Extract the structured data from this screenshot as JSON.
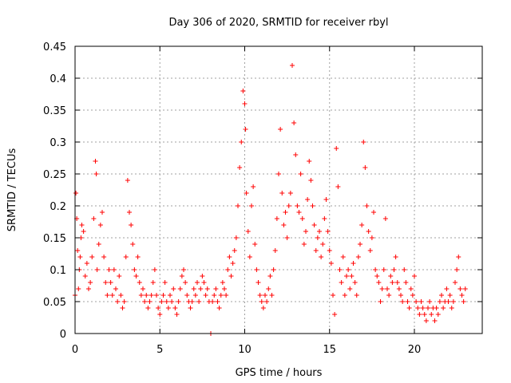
{
  "chart_data": {
    "type": "scatter",
    "title": "Day 306 of 2020, SRMTID for receiver rbyl",
    "xlabel": "GPS time / hours",
    "ylabel": "SRMTID / TECUs",
    "xlim": [
      0,
      24
    ],
    "ylim": [
      0,
      0.45
    ],
    "xticks": [
      0,
      5,
      10,
      15,
      20
    ],
    "xtick_labels": [
      "0",
      "5",
      "10",
      "15",
      "20"
    ],
    "yticks": [
      0,
      0.05,
      0.1,
      0.15,
      0.2,
      0.25,
      0.3,
      0.35,
      0.4,
      0.45
    ],
    "ytick_labels": [
      "0",
      "0.05",
      "0.1",
      "0.15",
      "0.2",
      "0.25",
      "0.3",
      "0.35",
      "0.4",
      "0.45"
    ],
    "grid": true,
    "marker": "+",
    "color": "#ff0000",
    "series": [
      {
        "name": "SRMTID",
        "x": [
          0.0,
          0.05,
          0.1,
          0.15,
          0.2,
          0.25,
          0.3,
          0.35,
          0.4,
          0.5,
          0.6,
          0.7,
          0.8,
          0.9,
          1.0,
          1.1,
          1.2,
          1.25,
          1.3,
          1.4,
          1.5,
          1.6,
          1.7,
          1.8,
          1.9,
          2.0,
          2.1,
          2.2,
          2.3,
          2.4,
          2.5,
          2.6,
          2.7,
          2.8,
          2.9,
          3.0,
          3.1,
          3.2,
          3.3,
          3.4,
          3.5,
          3.6,
          3.7,
          3.8,
          3.9,
          4.0,
          4.1,
          4.2,
          4.3,
          4.4,
          4.5,
          4.6,
          4.7,
          4.8,
          4.9,
          5.0,
          5.1,
          5.2,
          5.3,
          5.4,
          5.5,
          5.6,
          5.7,
          5.8,
          5.9,
          6.0,
          6.1,
          6.2,
          6.3,
          6.4,
          6.5,
          6.6,
          6.7,
          6.8,
          6.9,
          7.0,
          7.1,
          7.2,
          7.3,
          7.4,
          7.5,
          7.6,
          7.7,
          7.8,
          7.9,
          8.0,
          8.1,
          8.2,
          8.3,
          8.4,
          8.5,
          8.6,
          8.7,
          8.8,
          8.9,
          9.0,
          9.1,
          9.2,
          9.3,
          9.4,
          9.5,
          9.6,
          9.7,
          9.8,
          9.9,
          10.0,
          10.05,
          10.1,
          10.2,
          10.3,
          10.4,
          10.5,
          10.6,
          10.7,
          10.8,
          10.9,
          11.0,
          11.1,
          11.2,
          11.3,
          11.4,
          11.5,
          11.6,
          11.7,
          11.8,
          11.9,
          12.0,
          12.1,
          12.2,
          12.3,
          12.4,
          12.5,
          12.6,
          12.7,
          12.8,
          12.9,
          13.0,
          13.1,
          13.2,
          13.3,
          13.4,
          13.5,
          13.6,
          13.7,
          13.8,
          13.9,
          14.0,
          14.1,
          14.2,
          14.3,
          14.4,
          14.5,
          14.6,
          14.7,
          14.8,
          14.9,
          15.0,
          15.1,
          15.2,
          15.3,
          15.4,
          15.5,
          15.6,
          15.7,
          15.8,
          15.9,
          16.0,
          16.1,
          16.2,
          16.3,
          16.4,
          16.5,
          16.6,
          16.7,
          16.8,
          16.9,
          17.0,
          17.1,
          17.2,
          17.3,
          17.4,
          17.5,
          17.6,
          17.7,
          17.8,
          17.9,
          18.0,
          18.1,
          18.2,
          18.3,
          18.4,
          18.5,
          18.6,
          18.7,
          18.8,
          18.9,
          19.0,
          19.1,
          19.2,
          19.3,
          19.4,
          19.5,
          19.6,
          19.7,
          19.8,
          19.9,
          20.0,
          20.1,
          20.2,
          20.3,
          20.4,
          20.5,
          20.6,
          20.7,
          20.8,
          20.9,
          21.0,
          21.1,
          21.2,
          21.3,
          21.4,
          21.5,
          21.6,
          21.7,
          21.8,
          21.9,
          22.0,
          22.1,
          22.2,
          22.3,
          22.4,
          22.5,
          22.6,
          22.7,
          22.8,
          22.9,
          23.0
        ],
        "y": [
          0.06,
          0.22,
          0.18,
          0.13,
          0.07,
          0.1,
          0.12,
          0.15,
          0.17,
          0.16,
          0.09,
          0.11,
          0.07,
          0.08,
          0.12,
          0.18,
          0.27,
          0.25,
          0.1,
          0.14,
          0.17,
          0.19,
          0.12,
          0.08,
          0.06,
          0.1,
          0.08,
          0.06,
          0.1,
          0.07,
          0.05,
          0.09,
          0.06,
          0.04,
          0.05,
          0.12,
          0.24,
          0.19,
          0.17,
          0.14,
          0.1,
          0.09,
          0.12,
          0.08,
          0.06,
          0.07,
          0.05,
          0.06,
          0.04,
          0.05,
          0.06,
          0.08,
          0.1,
          0.06,
          0.04,
          0.03,
          0.05,
          0.06,
          0.08,
          0.05,
          0.04,
          0.06,
          0.05,
          0.07,
          0.04,
          0.03,
          0.05,
          0.07,
          0.09,
          0.1,
          0.08,
          0.06,
          0.05,
          0.04,
          0.05,
          0.07,
          0.06,
          0.08,
          0.05,
          0.07,
          0.09,
          0.08,
          0.06,
          0.07,
          0.05,
          0.0,
          0.05,
          0.06,
          0.07,
          0.05,
          0.04,
          0.06,
          0.08,
          0.07,
          0.06,
          0.1,
          0.12,
          0.09,
          0.11,
          0.13,
          0.15,
          0.2,
          0.26,
          0.3,
          0.38,
          0.36,
          0.32,
          0.22,
          0.16,
          0.12,
          0.2,
          0.23,
          0.14,
          0.1,
          0.08,
          0.06,
          0.05,
          0.04,
          0.06,
          0.05,
          0.07,
          0.09,
          0.06,
          0.1,
          0.13,
          0.18,
          0.25,
          0.32,
          0.22,
          0.17,
          0.19,
          0.15,
          0.2,
          0.22,
          0.42,
          0.33,
          0.28,
          0.2,
          0.19,
          0.25,
          0.18,
          0.14,
          0.16,
          0.21,
          0.27,
          0.24,
          0.2,
          0.17,
          0.13,
          0.15,
          0.16,
          0.12,
          0.14,
          0.18,
          0.21,
          0.16,
          0.13,
          0.11,
          0.06,
          0.03,
          0.29,
          0.23,
          0.1,
          0.08,
          0.12,
          0.06,
          0.09,
          0.1,
          0.07,
          0.09,
          0.11,
          0.08,
          0.06,
          0.12,
          0.14,
          0.17,
          0.3,
          0.26,
          0.2,
          0.16,
          0.13,
          0.15,
          0.19,
          0.1,
          0.09,
          0.08,
          0.05,
          0.07,
          0.1,
          0.18,
          0.07,
          0.06,
          0.09,
          0.08,
          0.1,
          0.12,
          0.08,
          0.07,
          0.06,
          0.05,
          0.1,
          0.08,
          0.05,
          0.04,
          0.07,
          0.06,
          0.09,
          0.05,
          0.04,
          0.03,
          0.05,
          0.04,
          0.03,
          0.02,
          0.04,
          0.05,
          0.03,
          0.04,
          0.02,
          0.04,
          0.03,
          0.05,
          0.06,
          0.04,
          0.05,
          0.07,
          0.05,
          0.06,
          0.04,
          0.05,
          0.08,
          0.1,
          0.12,
          0.07,
          0.06,
          0.05,
          0.07
        ]
      }
    ]
  }
}
